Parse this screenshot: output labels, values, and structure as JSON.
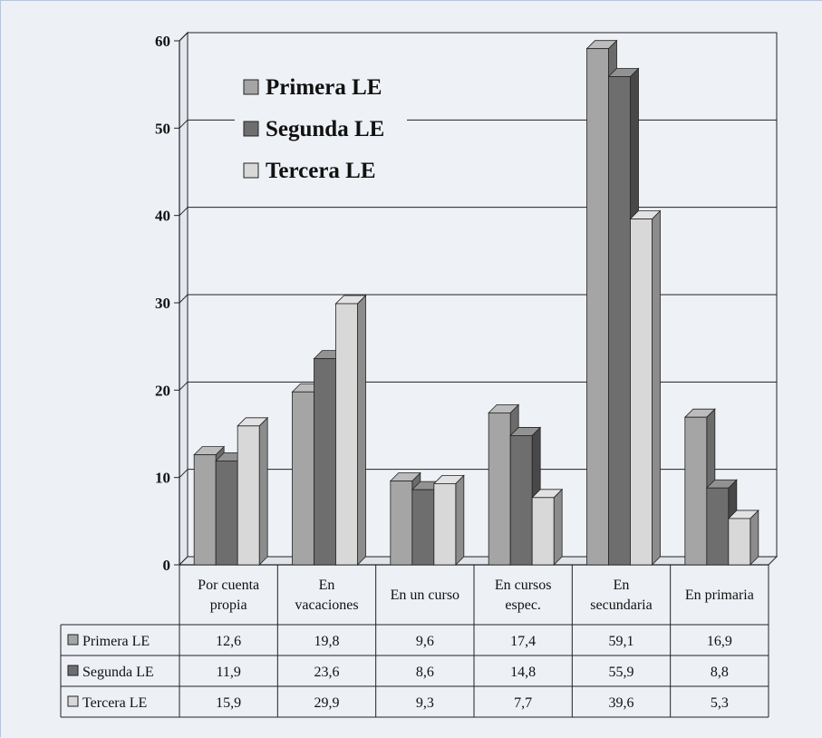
{
  "chart_data": {
    "type": "bar",
    "categories": [
      [
        "Por cuenta",
        "propia"
      ],
      [
        "En",
        "vacaciones"
      ],
      [
        "En un curso"
      ],
      [
        "En cursos",
        "espec."
      ],
      [
        "En",
        "secundaria"
      ],
      [
        "En primaria"
      ]
    ],
    "series": [
      {
        "name": "Primera LE",
        "values": [
          12.6,
          19.8,
          9.6,
          17.4,
          59.1,
          16.9
        ],
        "labels": [
          "12,6",
          "19,8",
          "9,6",
          "17,4",
          "59,1",
          "16,9"
        ],
        "color": "#a5a5a5"
      },
      {
        "name": "Segunda LE",
        "values": [
          11.9,
          23.6,
          8.6,
          14.8,
          55.9,
          8.8
        ],
        "labels": [
          "11,9",
          "23,6",
          "8,6",
          "14,8",
          "55,9",
          "8,8"
        ],
        "color": "#6e6e6e"
      },
      {
        "name": "Tercera LE",
        "values": [
          15.9,
          29.9,
          9.3,
          7.7,
          39.6,
          5.3
        ],
        "labels": [
          "15,9",
          "29,9",
          "9,3",
          "7,7",
          "39,6",
          "5,3"
        ],
        "color": "#d8d8d8"
      }
    ],
    "y_ticks": [
      "0",
      "10",
      "20",
      "30",
      "40",
      "50",
      "60"
    ],
    "ylim": [
      0,
      60
    ],
    "grid": true,
    "legend": "top-left",
    "data_table": true,
    "three_d": true
  }
}
